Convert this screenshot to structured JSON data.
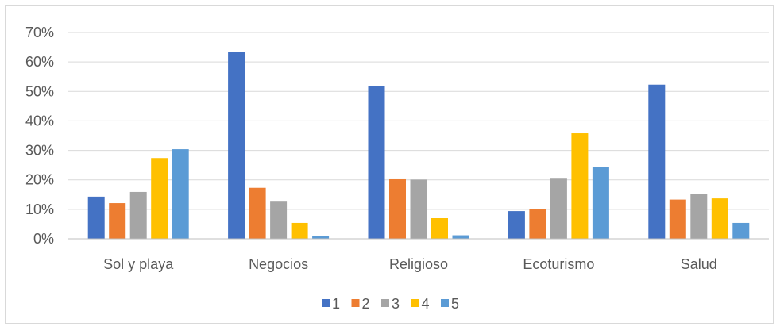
{
  "chart_data": {
    "type": "bar",
    "categories": [
      "Sol y playa",
      "Negocios",
      "Religioso",
      "Ecoturismo",
      "Salud"
    ],
    "series": [
      {
        "name": "1",
        "color": "#4472C4",
        "values": [
          14.3,
          63.5,
          51.7,
          9.4,
          52.3
        ]
      },
      {
        "name": "2",
        "color": "#ED7D31",
        "values": [
          12.1,
          17.3,
          20.2,
          10.1,
          13.3
        ]
      },
      {
        "name": "3",
        "color": "#A5A5A5",
        "values": [
          15.9,
          12.6,
          20.1,
          20.4,
          15.2
        ]
      },
      {
        "name": "4",
        "color": "#FFC000",
        "values": [
          27.4,
          5.4,
          7.0,
          35.8,
          13.7
        ]
      },
      {
        "name": "5",
        "color": "#5B9BD5",
        "values": [
          30.4,
          1.0,
          1.2,
          24.3,
          5.4
        ]
      }
    ],
    "ylim": [
      0,
      70
    ],
    "yticks": [
      "0%",
      "10%",
      "20%",
      "30%",
      "40%",
      "50%",
      "60%",
      "70%"
    ],
    "ytick_values": [
      0,
      10,
      20,
      30,
      40,
      50,
      60,
      70
    ],
    "grid": true,
    "legend_position": "bottom"
  }
}
